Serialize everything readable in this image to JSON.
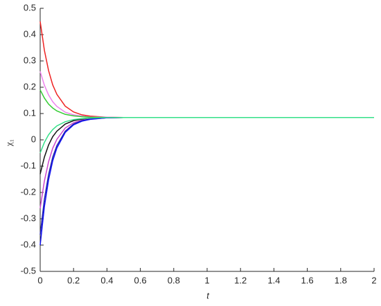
{
  "chart_data": {
    "type": "line",
    "xlabel": "t",
    "ylabel": "χ₁",
    "x": [
      0,
      0.025,
      0.05,
      0.075,
      0.1,
      0.15,
      0.2,
      0.25,
      0.3,
      0.4,
      0.5,
      1,
      1.5,
      2
    ],
    "series": [
      {
        "color": "#ee2222",
        "values": [
          0.45,
          0.341,
          0.264,
          0.209,
          0.173,
          0.128,
          0.106,
          0.095,
          0.09,
          0.086,
          0.085,
          0.085,
          0.085,
          0.085
        ]
      },
      {
        "color": "#ee82ee",
        "values": [
          0.26,
          0.208,
          0.171,
          0.145,
          0.127,
          0.105,
          0.095,
          0.09,
          0.087,
          0.086,
          0.085,
          0.085,
          0.085,
          0.085
        ]
      },
      {
        "color": "#33cc33",
        "values": [
          0.19,
          0.159,
          0.136,
          0.121,
          0.11,
          0.097,
          0.091,
          0.088,
          0.086,
          0.085,
          0.085,
          0.085,
          0.085,
          0.085
        ]
      },
      {
        "color": "#111111",
        "values": [
          -0.13,
          -0.066,
          -0.02,
          0.012,
          0.033,
          0.06,
          0.073,
          0.079,
          0.082,
          0.084,
          0.085,
          0.085,
          0.085,
          0.085
        ]
      },
      {
        "color": "#cc44cc",
        "values": [
          -0.26,
          -0.157,
          -0.084,
          -0.032,
          0.002,
          0.045,
          0.065,
          0.075,
          0.08,
          0.084,
          0.085,
          0.085,
          0.085,
          0.085
        ]
      },
      {
        "color": "#2222aa",
        "values": [
          -0.36,
          -0.227,
          -0.133,
          -0.066,
          -0.022,
          0.033,
          0.06,
          0.073,
          0.079,
          0.084,
          0.085,
          0.085,
          0.085,
          0.085
        ]
      },
      {
        "color": "#1111ee",
        "values": [
          -0.4,
          -0.255,
          -0.153,
          -0.08,
          -0.031,
          0.028,
          0.057,
          0.071,
          0.078,
          0.084,
          0.085,
          0.085,
          0.085,
          0.085
        ]
      },
      {
        "color": "#33e088",
        "values": [
          -0.05,
          -0.01,
          0.019,
          0.039,
          0.053,
          0.069,
          0.077,
          0.081,
          0.083,
          0.085,
          0.085,
          0.085,
          0.085,
          0.085
        ]
      }
    ],
    "xlim": [
      0,
      2
    ],
    "xticks": [
      0,
      0.2,
      0.4,
      0.6,
      0.8,
      1,
      1.2,
      1.4,
      1.6,
      1.8,
      2
    ],
    "ylim": [
      -0.5,
      0.5
    ],
    "yticks": [
      -0.5,
      -0.4,
      -0.3,
      -0.2,
      -0.1,
      0,
      0.1,
      0.2,
      0.3,
      0.4,
      0.5
    ],
    "grid": false
  }
}
